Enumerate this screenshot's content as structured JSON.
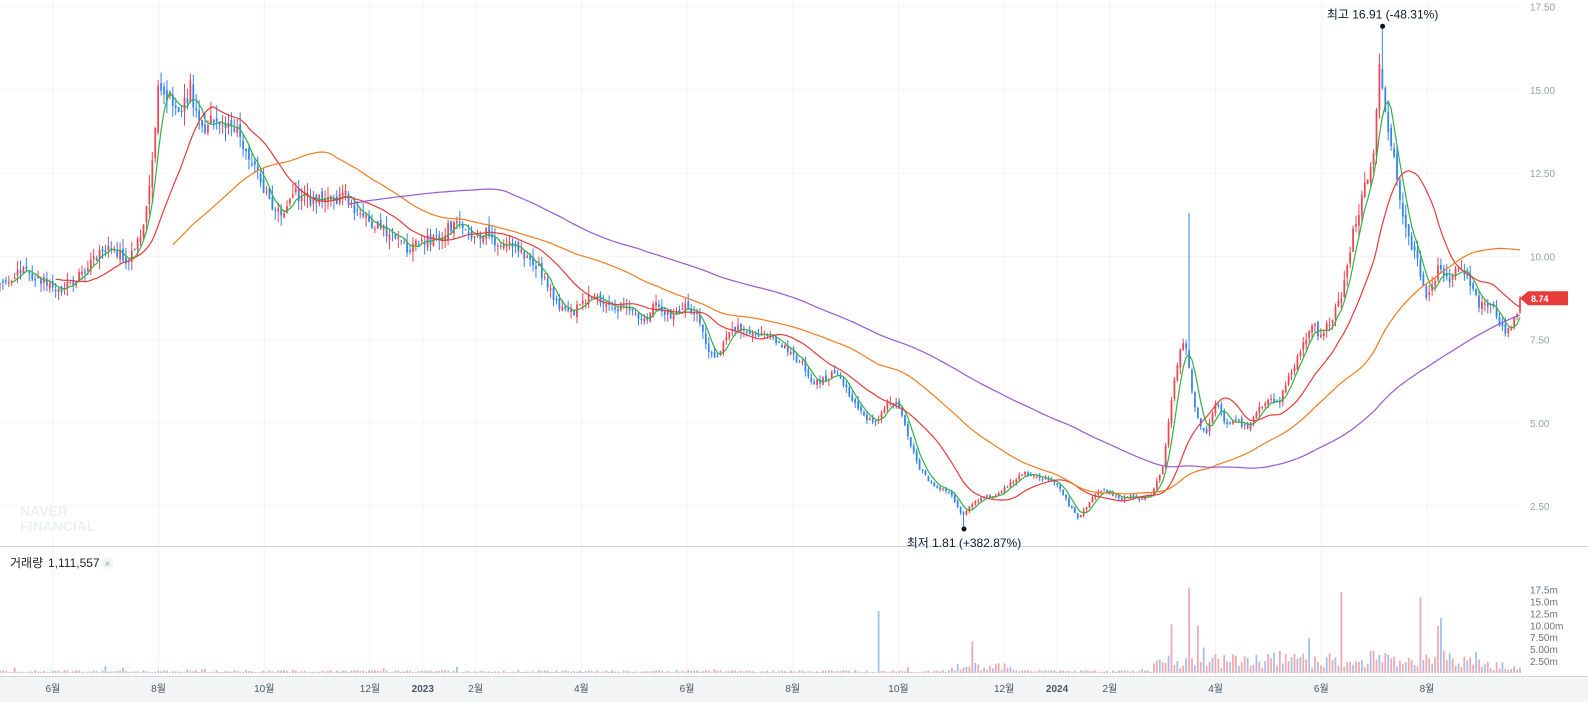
{
  "watermark": [
    "NAVER",
    "FINANCIAL"
  ],
  "volume": {
    "label": "거래량",
    "value": "1,111,557",
    "close_glyph": "×",
    "ticks": [
      "17.5m",
      "15.0m",
      "12.5m",
      "10.00m",
      "7.50m",
      "5.00m",
      "2.50m"
    ],
    "tick_values": [
      17.5,
      15.0,
      12.5,
      10.0,
      7.5,
      5.0,
      2.5
    ],
    "ymax": 19.5
  },
  "chart_data": {
    "type": "candlestick",
    "price_ticks": [
      "17.50",
      "15.00",
      "12.50",
      "10.00",
      "7.50",
      "5.00",
      "2.50"
    ],
    "price_tick_values": [
      17.5,
      15.0,
      12.5,
      10.0,
      7.5,
      5.0,
      2.5
    ],
    "ylim": [
      1.3,
      17.7
    ],
    "x_ticks": [
      {
        "label": "6월",
        "t": 0.05
      },
      {
        "label": "8월",
        "t": 0.15
      },
      {
        "label": "10월",
        "t": 0.25
      },
      {
        "label": "12월",
        "t": 0.35
      },
      {
        "label": "2023",
        "t": 0.4
      },
      {
        "label": "2월",
        "t": 0.45
      },
      {
        "label": "4월",
        "t": 0.55
      },
      {
        "label": "6월",
        "t": 0.65
      },
      {
        "label": "8월",
        "t": 0.75
      },
      {
        "label": "10월",
        "t": 0.85
      },
      {
        "label": "12월",
        "t": 0.95
      },
      {
        "label": "2024",
        "t": 1.0
      },
      {
        "label": "2월",
        "t": 1.05
      },
      {
        "label": "4월",
        "t": 1.15
      },
      {
        "label": "6월",
        "t": 1.25
      },
      {
        "label": "8월",
        "t": 1.35
      }
    ],
    "high_annotation": {
      "text": "최고 16.91 (-48.31%)",
      "value": 16.91,
      "t": 1.308
    },
    "low_annotation": {
      "text": "최저 1.81 (+382.87%)",
      "value": 1.81,
      "t": 0.912
    },
    "last_price": {
      "label": "8.74",
      "value": 8.74
    },
    "close_anchors": [
      [
        0,
        9.2
      ],
      [
        0.02,
        9.6
      ],
      [
        0.04,
        9.3
      ],
      [
        0.06,
        9.0
      ],
      [
        0.08,
        9.6
      ],
      [
        0.1,
        10.3
      ],
      [
        0.12,
        9.9
      ],
      [
        0.135,
        10.6
      ],
      [
        0.145,
        13.3
      ],
      [
        0.15,
        15.3
      ],
      [
        0.16,
        14.8
      ],
      [
        0.17,
        14.2
      ],
      [
        0.18,
        15.1
      ],
      [
        0.19,
        13.6
      ],
      [
        0.2,
        14.3
      ],
      [
        0.21,
        14.1
      ],
      [
        0.22,
        14.0
      ],
      [
        0.235,
        13.1
      ],
      [
        0.25,
        11.9
      ],
      [
        0.265,
        11.3
      ],
      [
        0.28,
        11.9
      ],
      [
        0.295,
        11.7
      ],
      [
        0.31,
        11.6
      ],
      [
        0.325,
        11.9
      ],
      [
        0.34,
        11.3
      ],
      [
        0.355,
        10.9
      ],
      [
        0.37,
        10.7
      ],
      [
        0.385,
        10.2
      ],
      [
        0.4,
        10.4
      ],
      [
        0.415,
        10.6
      ],
      [
        0.43,
        11.0
      ],
      [
        0.445,
        10.5
      ],
      [
        0.46,
        10.7
      ],
      [
        0.475,
        10.3
      ],
      [
        0.49,
        10.2
      ],
      [
        0.5,
        10.0
      ],
      [
        0.51,
        9.6
      ],
      [
        0.52,
        9.0
      ],
      [
        0.53,
        8.5
      ],
      [
        0.54,
        8.3
      ],
      [
        0.55,
        8.5
      ],
      [
        0.56,
        8.9
      ],
      [
        0.57,
        8.7
      ],
      [
        0.58,
        8.4
      ],
      [
        0.59,
        8.6
      ],
      [
        0.6,
        8.2
      ],
      [
        0.61,
        8.0
      ],
      [
        0.62,
        8.6
      ],
      [
        0.63,
        8.3
      ],
      [
        0.64,
        8.2
      ],
      [
        0.65,
        8.5
      ],
      [
        0.66,
        8.3
      ],
      [
        0.67,
        7.1
      ],
      [
        0.68,
        7.0
      ],
      [
        0.69,
        7.7
      ],
      [
        0.7,
        7.9
      ],
      [
        0.71,
        7.7
      ],
      [
        0.72,
        7.6
      ],
      [
        0.73,
        7.6
      ],
      [
        0.74,
        7.3
      ],
      [
        0.75,
        7.0
      ],
      [
        0.76,
        6.7
      ],
      [
        0.77,
        6.2
      ],
      [
        0.78,
        6.3
      ],
      [
        0.79,
        6.5
      ],
      [
        0.8,
        6.0
      ],
      [
        0.81,
        5.6
      ],
      [
        0.82,
        5.1
      ],
      [
        0.83,
        5.0
      ],
      [
        0.84,
        5.6
      ],
      [
        0.85,
        5.5
      ],
      [
        0.86,
        4.5
      ],
      [
        0.87,
        3.6
      ],
      [
        0.88,
        3.2
      ],
      [
        0.89,
        3.0
      ],
      [
        0.9,
        2.9
      ],
      [
        0.91,
        2.2
      ],
      [
        0.92,
        2.6
      ],
      [
        0.93,
        2.8
      ],
      [
        0.94,
        2.8
      ],
      [
        0.95,
        3.0
      ],
      [
        0.96,
        3.3
      ],
      [
        0.97,
        3.5
      ],
      [
        0.98,
        3.4
      ],
      [
        0.99,
        3.3
      ],
      [
        1.0,
        3.2
      ],
      [
        1.01,
        2.6
      ],
      [
        1.02,
        2.1
      ],
      [
        1.03,
        2.6
      ],
      [
        1.04,
        3.0
      ],
      [
        1.05,
        2.9
      ],
      [
        1.06,
        2.7
      ],
      [
        1.07,
        2.8
      ],
      [
        1.08,
        2.7
      ],
      [
        1.09,
        2.9
      ],
      [
        1.1,
        3.7
      ],
      [
        1.11,
        6.2
      ],
      [
        1.12,
        7.6
      ],
      [
        1.13,
        5.5
      ],
      [
        1.14,
        4.6
      ],
      [
        1.15,
        5.6
      ],
      [
        1.16,
        5.0
      ],
      [
        1.17,
        5.1
      ],
      [
        1.18,
        4.8
      ],
      [
        1.19,
        5.4
      ],
      [
        1.2,
        5.8
      ],
      [
        1.21,
        5.6
      ],
      [
        1.22,
        6.4
      ],
      [
        1.23,
        7.1
      ],
      [
        1.24,
        8.0
      ],
      [
        1.25,
        7.6
      ],
      [
        1.26,
        8.2
      ],
      [
        1.27,
        8.8
      ],
      [
        1.28,
        10.8
      ],
      [
        1.29,
        11.9
      ],
      [
        1.3,
        13.4
      ],
      [
        1.305,
        15.8
      ],
      [
        1.31,
        14.2
      ],
      [
        1.32,
        12.8
      ],
      [
        1.33,
        10.7
      ],
      [
        1.34,
        10.0
      ],
      [
        1.35,
        8.6
      ],
      [
        1.36,
        9.6
      ],
      [
        1.37,
        9.3
      ],
      [
        1.38,
        9.8
      ],
      [
        1.39,
        9.2
      ],
      [
        1.4,
        8.5
      ],
      [
        1.41,
        8.6
      ],
      [
        1.42,
        7.9
      ],
      [
        1.43,
        7.7
      ],
      [
        1.438,
        8.74
      ]
    ]
  }
}
